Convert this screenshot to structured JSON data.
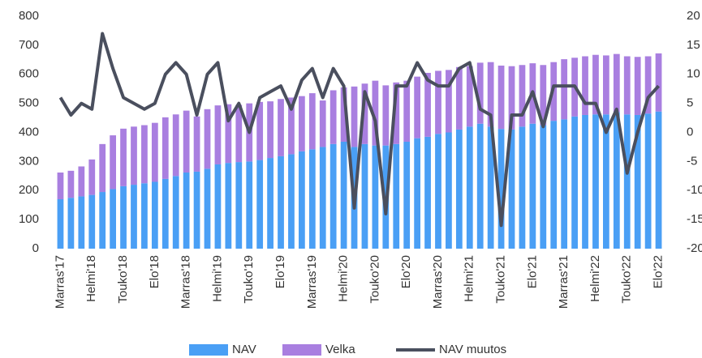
{
  "chart_data": {
    "type": "bar",
    "stacked": true,
    "categories": [
      "Marras'17",
      null,
      null,
      "Helmi'18",
      null,
      null,
      "Touko'18",
      null,
      null,
      "Elo'18",
      null,
      null,
      "Marras'18",
      null,
      null,
      "Helmi'19",
      null,
      null,
      "Touko'19",
      null,
      null,
      "Elo'19",
      null,
      null,
      "Marras'19",
      null,
      null,
      "Helmi'20",
      null,
      null,
      "Touko'20",
      null,
      null,
      "Elo'20",
      null,
      null,
      "Marras'20",
      null,
      null,
      "Helmi'21",
      null,
      null,
      "Touko'21",
      null,
      null,
      "Elo'21",
      null,
      null,
      "Marras'21",
      null,
      null,
      "Helmi'22",
      null,
      null,
      "Touko'22",
      null,
      null,
      "Elo'22"
    ],
    "series": [
      {
        "name": "NAV",
        "color": "#4a9ff5",
        "type": "bar",
        "values": [
          170,
          175,
          180,
          185,
          195,
          205,
          215,
          220,
          225,
          230,
          240,
          250,
          262,
          265,
          275,
          290,
          295,
          298,
          300,
          305,
          312,
          318,
          325,
          335,
          342,
          350,
          360,
          368,
          350,
          360,
          355,
          355,
          360,
          368,
          380,
          385,
          395,
          400,
          410,
          420,
          430,
          420,
          412,
          410,
          420,
          430,
          425,
          440,
          445,
          455,
          460,
          462,
          462,
          470,
          462,
          460,
          465,
          472
        ]
      },
      {
        "name": "Velka",
        "color": "#a97fe0",
        "type": "bar",
        "values": [
          92,
          93,
          103,
          122,
          165,
          185,
          198,
          200,
          200,
          203,
          212,
          212,
          213,
          190,
          205,
          203,
          202,
          197,
          200,
          200,
          195,
          197,
          195,
          190,
          193,
          160,
          185,
          187,
          208,
          208,
          223,
          207,
          212,
          210,
          212,
          220,
          217,
          215,
          215,
          208,
          210,
          222,
          218,
          218,
          212,
          208,
          207,
          202,
          207,
          202,
          202,
          205,
          203,
          200,
          200,
          200,
          197,
          200
        ]
      },
      {
        "name": "NAV muutos",
        "color": "#4a4f5e",
        "type": "line",
        "axis": "y2",
        "values": [
          6,
          3,
          5,
          4,
          17,
          11,
          6,
          5,
          4,
          5,
          10,
          12,
          10,
          3,
          10,
          12,
          2,
          5,
          0,
          6,
          7,
          8,
          4,
          9,
          11,
          6,
          11,
          8,
          -13,
          7,
          2,
          -14,
          8,
          8,
          12,
          9,
          8,
          8,
          11,
          12,
          4,
          3,
          -16,
          3,
          3,
          7,
          1,
          8,
          8,
          8,
          5,
          5,
          0,
          4,
          -7,
          0,
          6,
          8
        ]
      }
    ],
    "ylim": [
      0,
      800
    ],
    "yticks": [
      0,
      100,
      200,
      300,
      400,
      500,
      600,
      700,
      800
    ],
    "y2lim": [
      -20,
      20
    ],
    "y2ticks": [
      -20,
      -15,
      -10,
      -5,
      0,
      5,
      10,
      15,
      20
    ],
    "grid": false,
    "legend": "bottom"
  }
}
